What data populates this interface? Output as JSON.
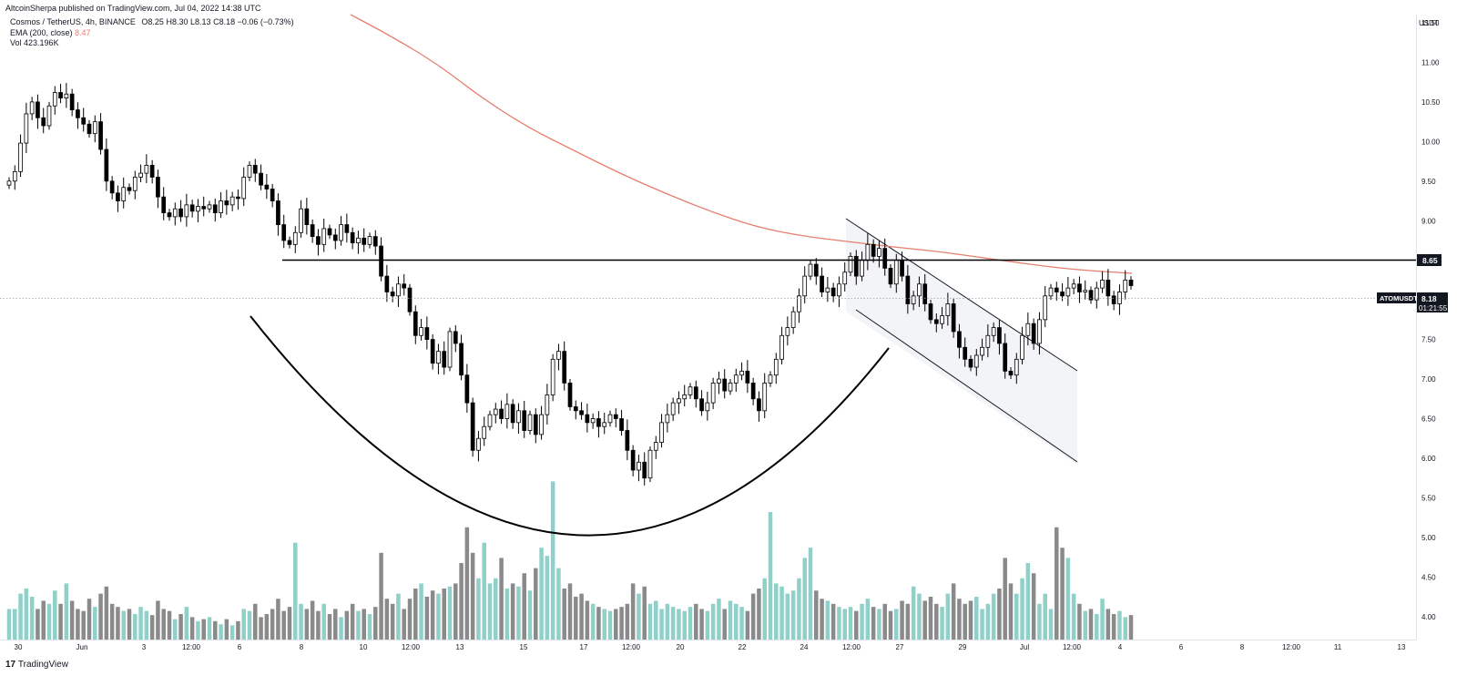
{
  "header": {
    "publisher": "AltcoinSherpa published on TradingView.com, Jul 04, 2022 14:38 UTC"
  },
  "legend": {
    "symbol": "Cosmos / TetherUS, 4h, BINANCE",
    "open_label": "O",
    "open": "8.25",
    "high_label": "H",
    "high": "8.30",
    "low_label": "L",
    "low": "8.13",
    "close_label": "C",
    "close": "8.18",
    "change": "−0.06 (−0.73%)",
    "ema_label": "EMA (200, close)",
    "ema_value": "8.47",
    "vol_label": "Vol",
    "vol_value": "423.196K"
  },
  "footer": {
    "logo_text": "17",
    "brand": "TradingView"
  },
  "price_label": {
    "symbol": "ATOMUSDT",
    "price": "8.18",
    "countdown": "01:21:55"
  },
  "level_label": "8.65",
  "colors": {
    "up_volume": "#8fd0c8",
    "down_volume": "#8a8a8a",
    "ema": "#e57f6e",
    "candle_up": "#ffffff",
    "candle_down": "#000000",
    "label_bg": "#131722"
  },
  "chart_data": {
    "type": "candlestick",
    "symbol": "ATOMUSDT",
    "currency": "USDT",
    "timeframe": "4h",
    "y_ticks": [
      11.5,
      11.0,
      10.5,
      10.0,
      9.5,
      9.0,
      8.5,
      8.0,
      7.5,
      7.0,
      6.5,
      6.0,
      5.5,
      5.0,
      4.5,
      4.0
    ],
    "ylim": [
      3.9,
      11.6
    ],
    "x_ticks": [
      "30",
      "Jun",
      "3",
      "12:00",
      "6",
      "8",
      "10",
      "12:00",
      "13",
      "15",
      "17",
      "12:00",
      "20",
      "22",
      "24",
      "12:00",
      "27",
      "29",
      "Jul",
      "12:00",
      "4",
      "6",
      "8",
      "12:00",
      "11",
      "13"
    ],
    "current_price": 8.18,
    "horizontal_level": 8.65,
    "annotations": [
      "rounded bottom arc",
      "descending channel",
      "resistance line 8.65"
    ],
    "ema_200": [
      10.0,
      8.95,
      8.65,
      8.47
    ],
    "closes": [
      9.5,
      9.62,
      9.98,
      10.35,
      10.5,
      10.3,
      10.2,
      10.45,
      10.62,
      10.55,
      10.6,
      10.4,
      10.3,
      10.22,
      10.1,
      10.25,
      9.9,
      9.5,
      9.35,
      9.25,
      9.42,
      9.38,
      9.55,
      9.6,
      9.7,
      9.55,
      9.3,
      9.1,
      9.05,
      9.15,
      9.05,
      9.2,
      9.12,
      9.18,
      9.15,
      9.2,
      9.1,
      9.25,
      9.2,
      9.3,
      9.28,
      9.55,
      9.7,
      9.6,
      9.45,
      9.4,
      9.25,
      8.95,
      8.75,
      8.7,
      8.85,
      9.15,
      8.95,
      8.8,
      8.7,
      8.9,
      8.82,
      8.75,
      8.95,
      8.85,
      8.72,
      8.78,
      8.7,
      8.8,
      8.68,
      8.3,
      8.1,
      8.05,
      8.2,
      8.15,
      7.85,
      7.55,
      7.65,
      7.5,
      7.2,
      7.35,
      7.15,
      7.6,
      7.45,
      7.05,
      6.7,
      6.1,
      6.25,
      6.4,
      6.55,
      6.62,
      6.5,
      6.68,
      6.45,
      6.6,
      6.35,
      6.55,
      6.3,
      6.55,
      6.8,
      7.25,
      7.35,
      6.95,
      6.65,
      6.6,
      6.55,
      6.45,
      6.5,
      6.4,
      6.45,
      6.55,
      6.5,
      6.35,
      6.1,
      5.85,
      5.95,
      5.75,
      6.1,
      6.2,
      6.45,
      6.55,
      6.7,
      6.75,
      6.8,
      6.9,
      6.75,
      6.6,
      6.7,
      6.95,
      7.0,
      6.85,
      6.95,
      7.05,
      7.1,
      6.95,
      6.75,
      6.6,
      6.95,
      7.05,
      7.25,
      7.55,
      7.65,
      7.85,
      8.05,
      8.3,
      8.45,
      8.3,
      8.1,
      8.15,
      8.05,
      8.2,
      8.35,
      8.55,
      8.3,
      8.5,
      8.7,
      8.55,
      8.65,
      8.4,
      8.2,
      8.5,
      8.3,
      7.95,
      8.05,
      8.2,
      7.95,
      7.75,
      7.7,
      7.8,
      7.95,
      7.6,
      7.4,
      7.25,
      7.15,
      7.3,
      7.4,
      7.55,
      7.65,
      7.45,
      7.1,
      7.05,
      7.25,
      7.55,
      7.7,
      7.45,
      7.75,
      8.05,
      8.15,
      8.1,
      8.05,
      8.15,
      8.2,
      8.1,
      8.12,
      8.0,
      8.15,
      8.25,
      8.05,
      7.95,
      8.1,
      8.25,
      8.18
    ],
    "volume_scale": [
      0.3,
      0.3,
      0.45,
      0.5,
      0.42,
      0.3,
      0.38,
      0.35,
      0.48,
      0.35,
      0.55,
      0.38,
      0.3,
      0.28,
      0.4,
      0.32,
      0.45,
      0.52,
      0.35,
      0.32,
      0.28,
      0.3,
      0.25,
      0.32,
      0.28,
      0.24,
      0.38,
      0.3,
      0.28,
      0.2,
      0.25,
      0.32,
      0.22,
      0.18,
      0.2,
      0.22,
      0.18,
      0.15,
      0.2,
      0.14,
      0.18,
      0.3,
      0.28,
      0.35,
      0.22,
      0.25,
      0.3,
      0.4,
      0.28,
      0.32,
      0.95,
      0.35,
      0.3,
      0.38,
      0.28,
      0.35,
      0.25,
      0.3,
      0.22,
      0.28,
      0.35,
      0.28,
      0.3,
      0.25,
      0.32,
      0.85,
      0.4,
      0.35,
      0.45,
      0.3,
      0.4,
      0.5,
      0.55,
      0.42,
      0.48,
      0.45,
      0.5,
      0.52,
      0.55,
      0.75,
      1.1,
      0.85,
      0.6,
      0.95,
      0.55,
      0.6,
      0.8,
      0.5,
      0.55,
      0.52,
      0.65,
      0.48,
      0.7,
      0.9,
      0.82,
      1.55,
      0.7,
      0.5,
      0.55,
      0.42,
      0.45,
      0.38,
      0.35,
      0.32,
      0.3,
      0.28,
      0.3,
      0.32,
      0.35,
      0.55,
      0.45,
      0.52,
      0.35,
      0.38,
      0.3,
      0.35,
      0.32,
      0.3,
      0.28,
      0.32,
      0.35,
      0.3,
      0.28,
      0.35,
      0.4,
      0.3,
      0.38,
      0.35,
      0.32,
      0.28,
      0.45,
      0.5,
      0.6,
      1.25,
      0.55,
      0.52,
      0.45,
      0.48,
      0.6,
      0.8,
      0.9,
      0.48,
      0.4,
      0.38,
      0.35,
      0.32,
      0.3,
      0.32,
      0.28,
      0.35,
      0.4,
      0.32,
      0.3,
      0.35,
      0.28,
      0.3,
      0.38,
      0.35,
      0.52,
      0.45,
      0.38,
      0.42,
      0.35,
      0.32,
      0.45,
      0.55,
      0.4,
      0.35,
      0.38,
      0.42,
      0.3,
      0.35,
      0.45,
      0.5,
      0.8,
      0.55,
      0.45,
      0.6,
      0.75,
      0.65,
      0.35,
      0.45,
      0.3,
      1.1,
      0.9,
      0.8,
      0.45,
      0.35,
      0.28,
      0.3,
      0.25,
      0.4,
      0.3,
      0.25,
      0.28,
      0.22,
      0.24,
      0.2,
      0.25,
      0.22
    ]
  }
}
